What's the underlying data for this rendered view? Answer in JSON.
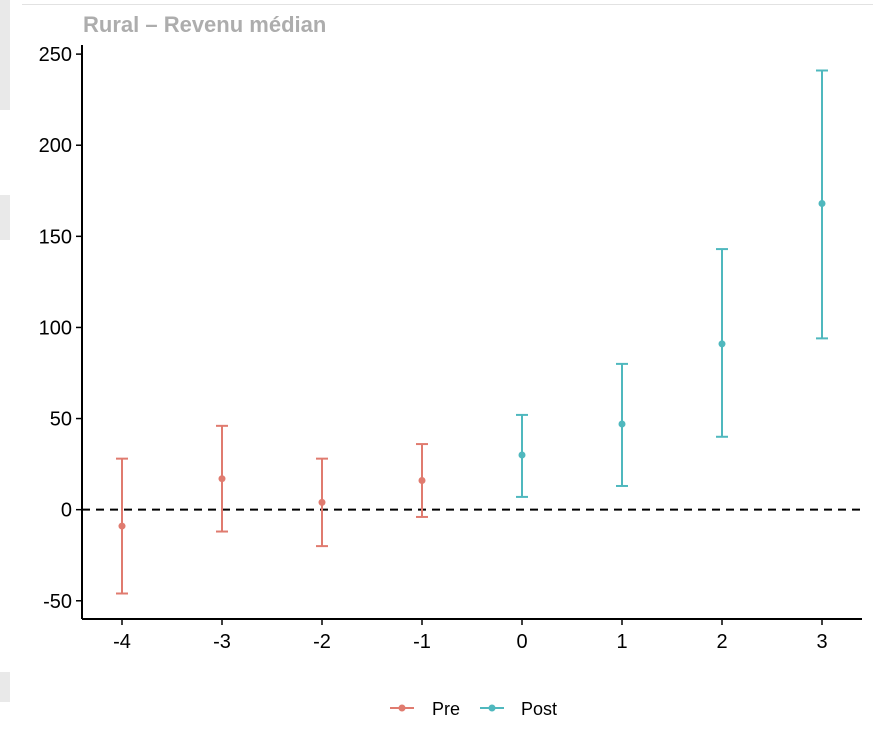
{
  "chart_data": {
    "type": "scatter",
    "title": "Rural – Revenu médian",
    "xlabel": "",
    "ylabel": "",
    "xlim": [
      -4.4,
      3.4
    ],
    "ylim": [
      -60,
      255
    ],
    "x_ticks": [
      "-4",
      "-3",
      "-2",
      "-1",
      "0",
      "1",
      "2",
      "3"
    ],
    "y_ticks": [
      "-50",
      "0",
      "50",
      "100",
      "150",
      "200",
      "250"
    ],
    "reference_line": {
      "y": 0,
      "style": "dashed"
    },
    "grid": false,
    "legend_position": "bottom",
    "series": [
      {
        "name": "Pre",
        "color": "#e07b6f",
        "points": [
          {
            "x": -4,
            "y": -9,
            "lower": -46,
            "upper": 28
          },
          {
            "x": -3,
            "y": 17,
            "lower": -12,
            "upper": 46
          },
          {
            "x": -2,
            "y": 4,
            "lower": -20,
            "upper": 28
          },
          {
            "x": -1,
            "y": 16,
            "lower": -4,
            "upper": 36
          }
        ]
      },
      {
        "name": "Post",
        "color": "#4fb8be",
        "points": [
          {
            "x": 0,
            "y": 30,
            "lower": 7,
            "upper": 52
          },
          {
            "x": 1,
            "y": 47,
            "lower": 13,
            "upper": 80
          },
          {
            "x": 2,
            "y": 91,
            "lower": 40,
            "upper": 143
          },
          {
            "x": 3,
            "y": 168,
            "lower": 94,
            "upper": 241
          }
        ]
      }
    ]
  }
}
